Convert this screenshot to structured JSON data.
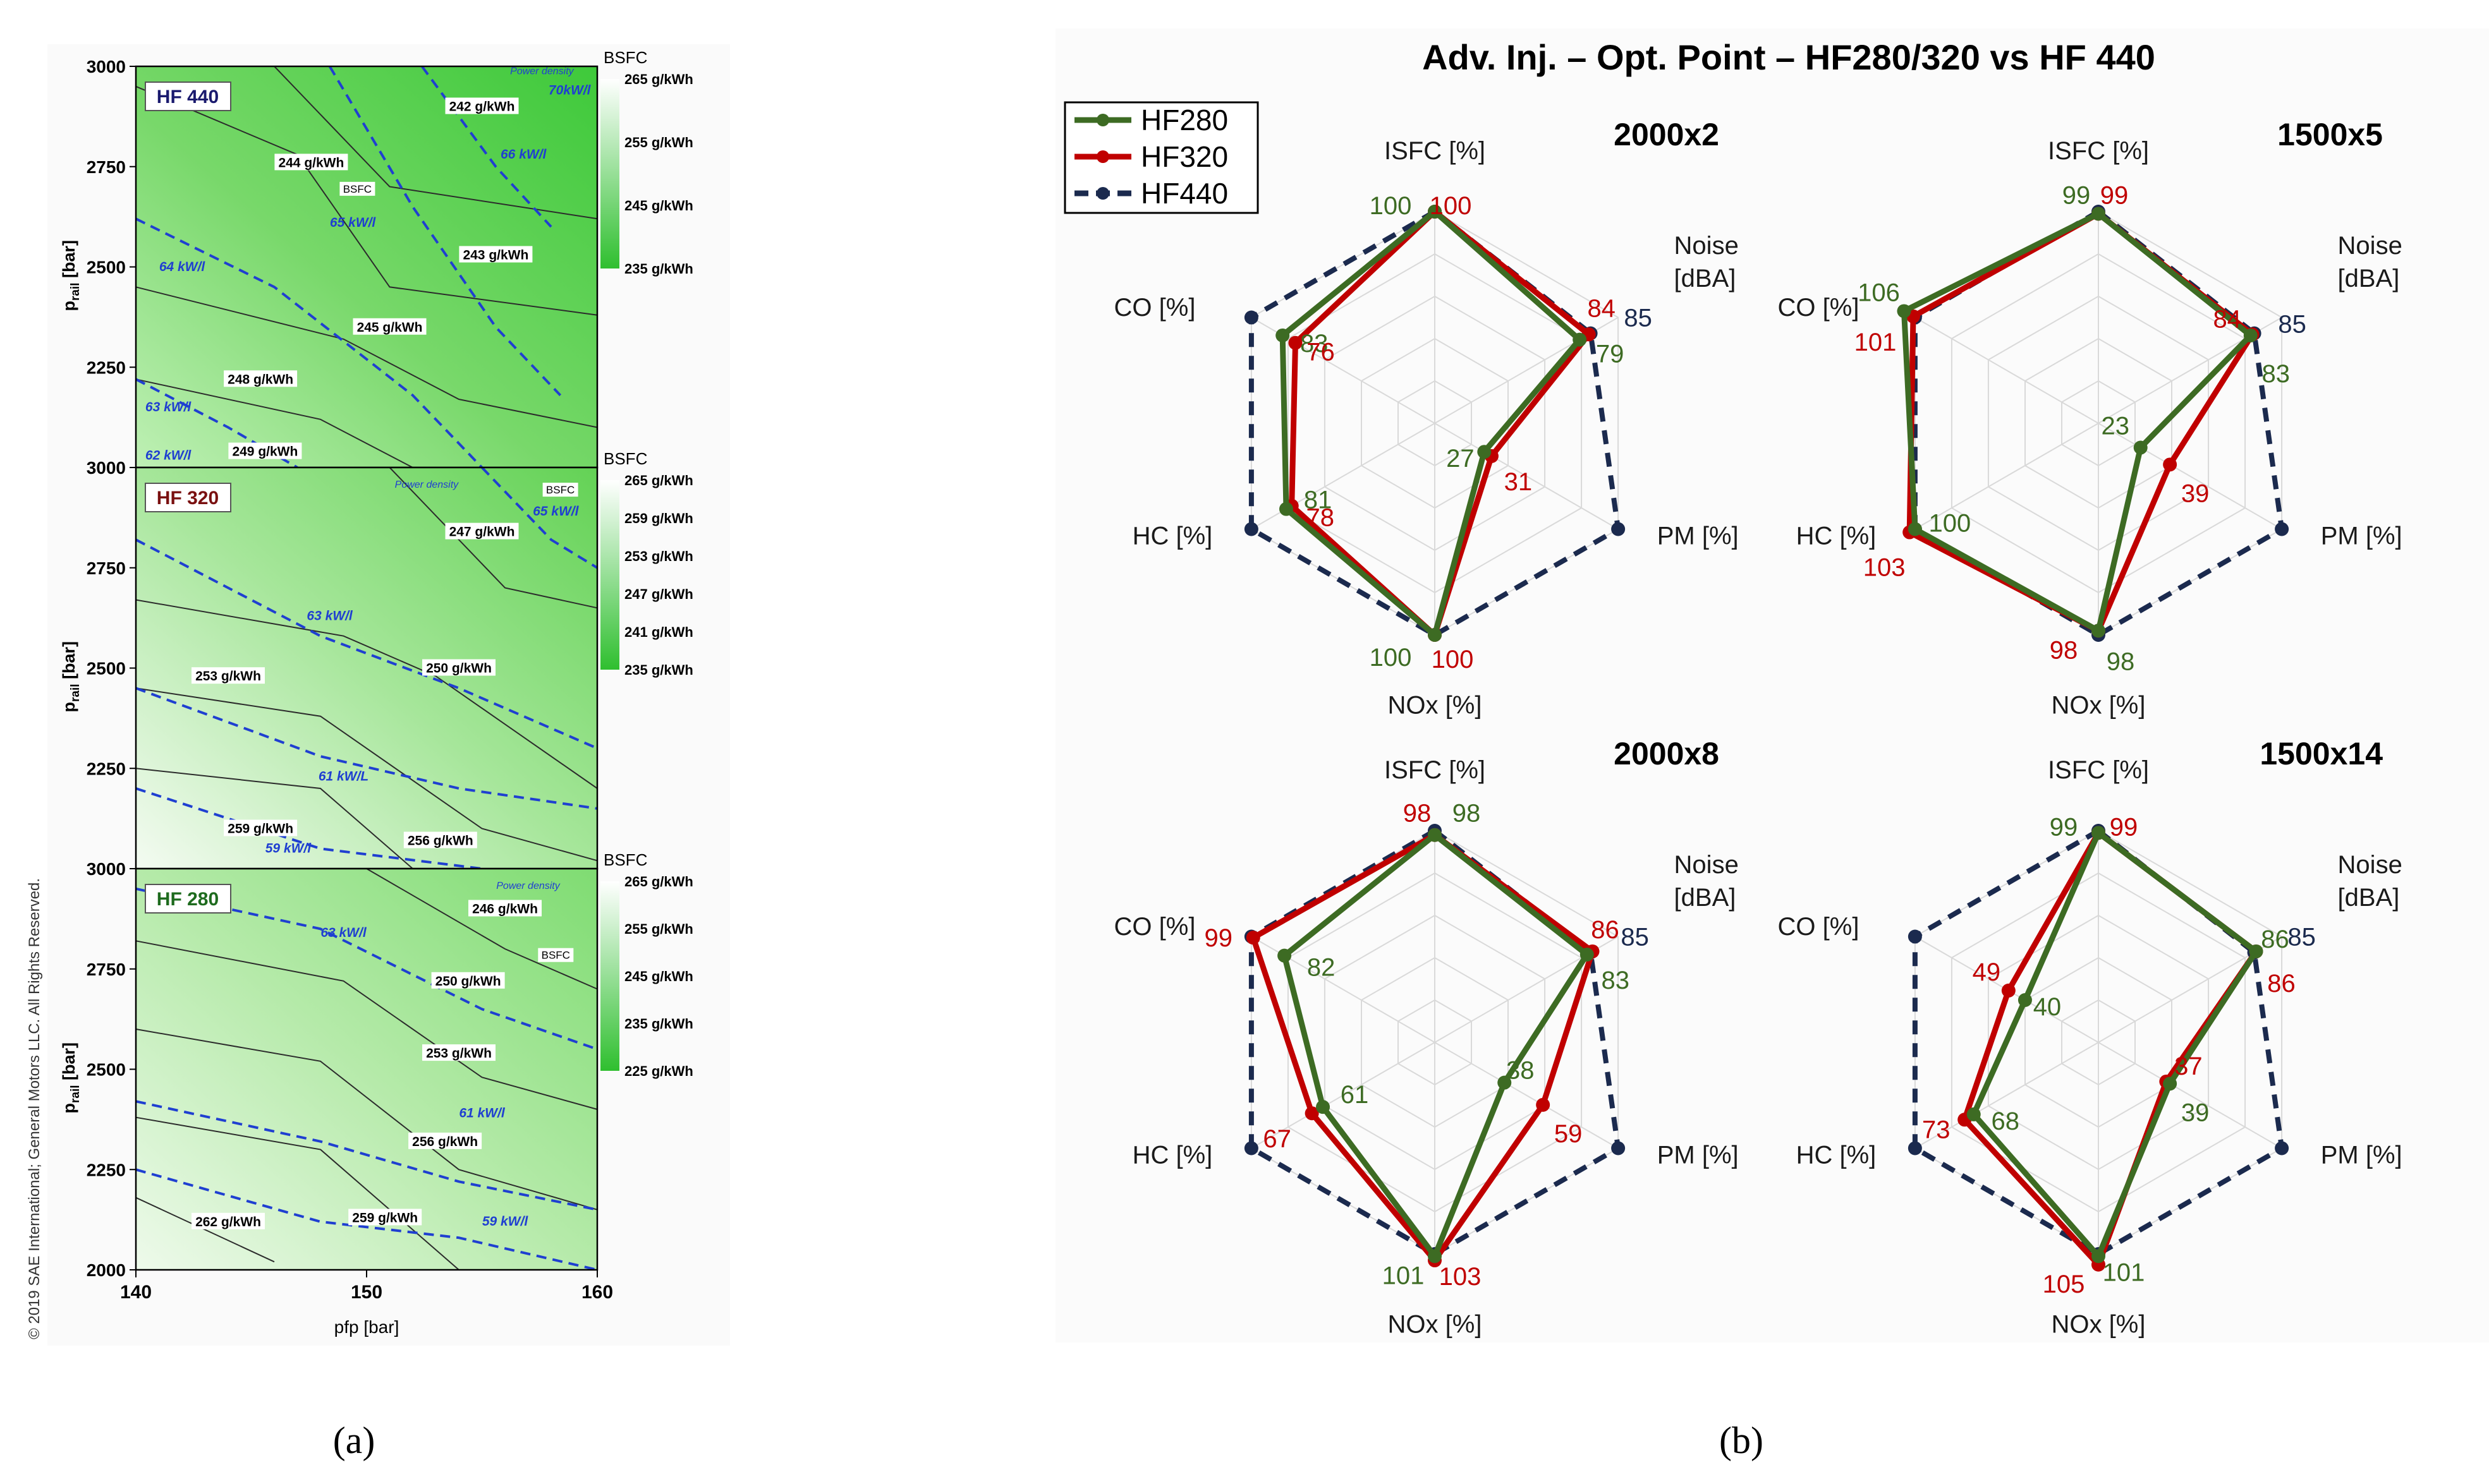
{
  "panel_a": {
    "label": "(a)",
    "copyright": "© 2019 SAE International; General Motors LLC. All Rights Reserved.",
    "xlabel": "pfp [bar]",
    "ylabel_main": "p",
    "ylabel_sub": "rail",
    "ylabel_unit": " [bar]",
    "x_ticks": [
      "140",
      "150",
      "160"
    ],
    "colorbar_title": "BSFC",
    "subplots": [
      {
        "name": "HF 440",
        "name_color": "#1a1a6e",
        "y_ticks": [
          "3000",
          "2750",
          "2500",
          "2250",
          "2000"
        ],
        "colorbar_ticks": [
          "265 g/kWh",
          "255 g/kWh",
          "245 g/kWh",
          "235 g/kWh"
        ],
        "annotations": {
          "power_density": "Power density",
          "bsfc": "BSFC"
        },
        "bsfc_labels": [
          "242 g/kWh",
          "244 g/kWh",
          "243 g/kWh",
          "245 g/kWh",
          "248 g/kWh",
          "249 g/kWh"
        ],
        "pd_labels": [
          "70kW/l",
          "66 kW/l",
          "65 kW/l",
          "64 kW/l",
          "63 kW/l",
          "62 kW/l"
        ]
      },
      {
        "name": "HF 320",
        "name_color": "#7a1010",
        "y_ticks": [
          "3000",
          "2750",
          "2500",
          "2250",
          "2000"
        ],
        "colorbar_ticks": [
          "265 g/kWh",
          "259 g/kWh",
          "253 g/kWh",
          "247 g/kWh",
          "241 g/kWh",
          "235 g/kWh"
        ],
        "annotations": {
          "power_density": "Power density",
          "bsfc": "BSFC"
        },
        "bsfc_labels": [
          "247 g/kWh",
          "253 g/kWh",
          "250 g/kWh",
          "259 g/kWh",
          "256 g/kWh"
        ],
        "pd_labels": [
          "65 kW/l",
          "63 kW/l",
          "61 kW/L",
          "59 kW/l"
        ]
      },
      {
        "name": "HF 280",
        "name_color": "#1e6b1e",
        "y_ticks": [
          "3000",
          "2750",
          "2500",
          "2250",
          "2000"
        ],
        "colorbar_ticks": [
          "265 g/kWh",
          "255 g/kWh",
          "245 g/kWh",
          "235 g/kWh",
          "225 g/kWh"
        ],
        "annotations": {
          "power_density": "Power density",
          "bsfc": "BSFC"
        },
        "bsfc_labels": [
          "246 g/kWh",
          "250 g/kWh",
          "253 g/kWh",
          "256 g/kWh",
          "259 g/kWh",
          "262 g/kWh"
        ],
        "pd_labels": [
          "63 kW/l",
          "61 kW/l",
          "59 kW/l"
        ]
      }
    ]
  },
  "panel_b": {
    "label": "(b)",
    "title": "Adv. Inj. – Opt. Point – HF280/320 vs HF 440",
    "legend": [
      "HF280",
      "HF320",
      "HF440"
    ],
    "colors": {
      "HF280": "#3d6b23",
      "HF320": "#c00000",
      "HF440": "#1b2a4e",
      "grid": "#d9d9d9"
    }
  },
  "chart_data": [
    {
      "type": "radar",
      "title": "2000x2",
      "axes": [
        "ISFC [%]",
        "Noise [dBA]",
        "PM [%]",
        "NOx [%]",
        "HC [%]",
        "CO [%]"
      ],
      "rlim": [
        0,
        100
      ],
      "series": [
        {
          "name": "HF280",
          "values": [
            100,
            79,
            27,
            100,
            81,
            83
          ]
        },
        {
          "name": "HF320",
          "values": [
            100,
            84,
            31,
            100,
            78,
            76
          ]
        },
        {
          "name": "HF440",
          "values": [
            100,
            85,
            100,
            100,
            100,
            100
          ]
        }
      ],
      "data_labels": {
        "HF280": [
          "100",
          "79",
          "27",
          "100",
          "81",
          "83"
        ],
        "HF320": [
          "100",
          "84",
          "31",
          "100",
          "78",
          "76"
        ],
        "HF440": [
          "",
          "85",
          "",
          "",
          "",
          ""
        ]
      }
    },
    {
      "type": "radar",
      "title": "1500x5",
      "axes": [
        "ISFC [%]",
        "Noise [dBA]",
        "PM [%]",
        "NOx [%]",
        "HC [%]",
        "CO [%]"
      ],
      "rlim": [
        0,
        100
      ],
      "series": [
        {
          "name": "HF280",
          "values": [
            99,
            83,
            23,
            98,
            100,
            106
          ]
        },
        {
          "name": "HF320",
          "values": [
            99,
            84,
            39,
            98,
            103,
            101
          ]
        },
        {
          "name": "HF440",
          "values": [
            100,
            85,
            100,
            100,
            100,
            100
          ]
        }
      ],
      "data_labels": {
        "HF280": [
          "99",
          "83",
          "23",
          "98",
          "100",
          "106"
        ],
        "HF320": [
          "99",
          "84",
          "39",
          "98",
          "103",
          "101"
        ],
        "HF440": [
          "",
          "85",
          "",
          "",
          "",
          ""
        ]
      }
    },
    {
      "type": "radar",
      "title": "2000x8",
      "axes": [
        "ISFC [%]",
        "Noise [dBA]",
        "PM [%]",
        "NOx [%]",
        "HC [%]",
        "CO [%]"
      ],
      "rlim": [
        0,
        100
      ],
      "series": [
        {
          "name": "HF280",
          "values": [
            98,
            83,
            38,
            101,
            61,
            82
          ]
        },
        {
          "name": "HF320",
          "values": [
            98,
            86,
            59,
            103,
            67,
            99
          ]
        },
        {
          "name": "HF440",
          "values": [
            100,
            85,
            100,
            100,
            100,
            100
          ]
        }
      ],
      "data_labels": {
        "HF280": [
          "98",
          "83",
          "38",
          "101",
          "61",
          "82"
        ],
        "HF320": [
          "98",
          "86",
          "59",
          "103",
          "67",
          "99"
        ],
        "HF440": [
          "",
          "85",
          "",
          "",
          "",
          ""
        ]
      }
    },
    {
      "type": "radar",
      "title": "1500x14",
      "axes": [
        "ISFC [%]",
        "Noise [dBA]",
        "PM [%]",
        "NOx [%]",
        "HC [%]",
        "CO [%]"
      ],
      "rlim": [
        0,
        100
      ],
      "series": [
        {
          "name": "HF280",
          "values": [
            99,
            86,
            39,
            101,
            68,
            40
          ]
        },
        {
          "name": "HF320",
          "values": [
            99,
            86,
            37,
            105,
            73,
            49
          ]
        },
        {
          "name": "HF440",
          "values": [
            100,
            85,
            100,
            100,
            100,
            100
          ]
        }
      ],
      "data_labels": {
        "HF280": [
          "99",
          "86",
          "39",
          "101",
          "68",
          "40"
        ],
        "HF320": [
          "99",
          "86",
          "37",
          "105",
          "73",
          "49"
        ],
        "HF440": [
          "",
          "85",
          "",
          "",
          "",
          ""
        ]
      }
    }
  ]
}
